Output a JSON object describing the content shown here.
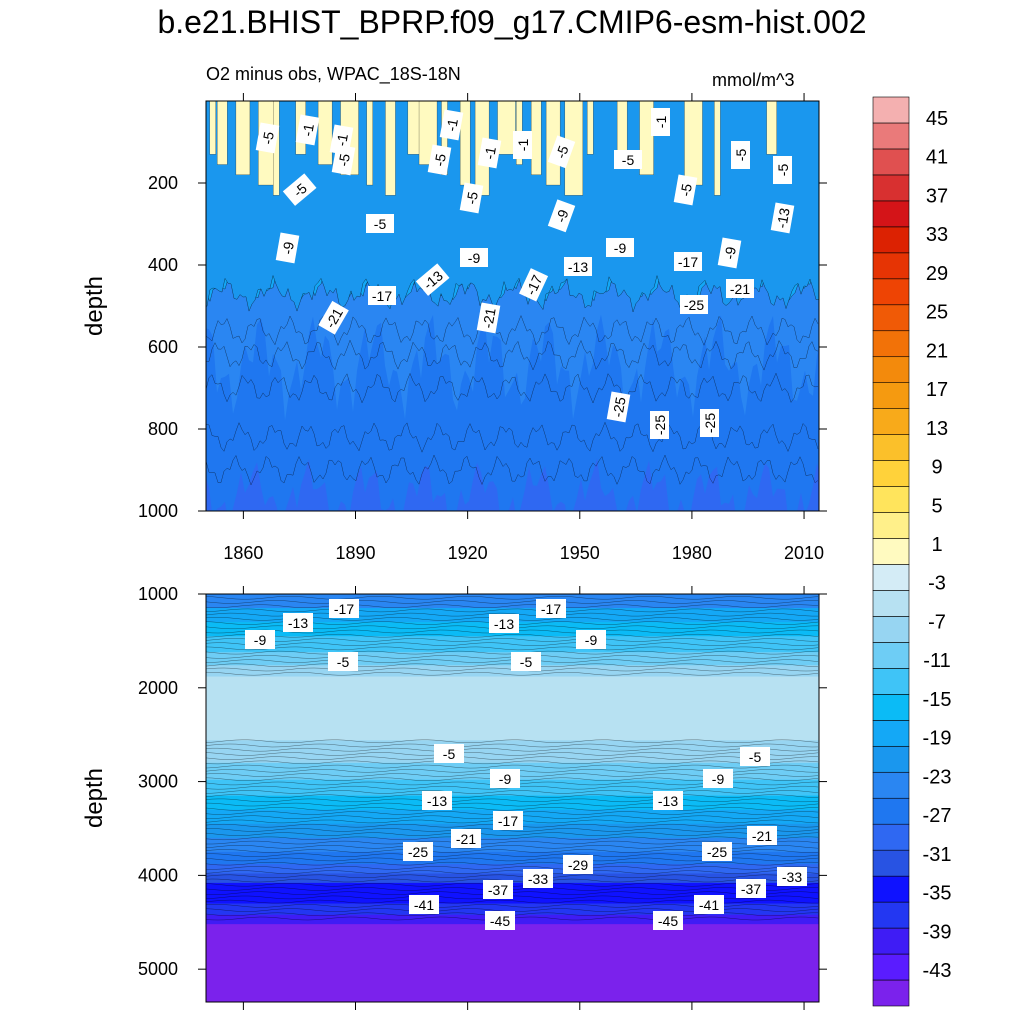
{
  "title": "b.e21.BHIST_BPRP.f09_g17.CMIP6-esm-hist.002",
  "subtitle_left": "O2 minus obs, WPAC_18S-18N",
  "subtitle_right": "mmol/m^3",
  "colors": {
    "levels_bottom_to_top": [
      "#7b22ec",
      "#5a1cff",
      "#3f1cf5",
      "#2337f2",
      "#0f12ff",
      "#2853e3",
      "#2f68f2",
      "#1f77f0",
      "#2a86f2",
      "#1a97ee",
      "#14a8f6",
      "#0bbbf6",
      "#3fc4f7",
      "#6ecdf5",
      "#97d5f2",
      "#b7e1f2",
      "#d4ecf6",
      "#fffac0",
      "#fff08a",
      "#ffe45c",
      "#ffd23a",
      "#fbc02a",
      "#f8aa1a",
      "#f59a10",
      "#f38a0c",
      "#f27208",
      "#f05a06",
      "#ee4404",
      "#e63404",
      "#dc2202",
      "#d41418",
      "#d83030",
      "#e05050",
      "#ea7a7a",
      "#f4b0b0"
    ],
    "labelbar_labels": [
      "45",
      "41",
      "37",
      "33",
      "29",
      "25",
      "21",
      "17",
      "13",
      "9",
      "5",
      "1",
      "-3",
      "-7",
      "-11",
      "-15",
      "-19",
      "-23",
      "-27",
      "-31",
      "-35",
      "-39",
      "-43"
    ]
  },
  "chart_data": [
    {
      "type": "contour",
      "panel": "upper",
      "xlabel": "",
      "ylabel": "depth",
      "x_ticks": [
        1860,
        1890,
        1920,
        1950,
        1980,
        2010
      ],
      "y_ticks": [
        200,
        400,
        600,
        800,
        1000
      ],
      "xlim": [
        1850,
        2014
      ],
      "ylim": [
        1000,
        0
      ],
      "contour_labels": [
        "-5",
        "-1",
        "-1",
        "-1",
        "-1",
        "-1",
        "-1",
        "-5",
        "-5",
        "-5",
        "-5",
        "-5",
        "-5",
        "-5",
        "-5",
        "-5",
        "-5",
        "-9",
        "-9",
        "-9",
        "-9",
        "-9",
        "-13",
        "-13",
        "-13",
        "-17",
        "-17",
        "-17",
        "-21",
        "-21",
        "-21",
        "-25",
        "-25",
        "-25",
        "-25"
      ]
    },
    {
      "type": "contour",
      "panel": "lower",
      "xlabel": "",
      "ylabel": "depth",
      "y_ticks": [
        1000,
        2000,
        3000,
        4000,
        5000
      ],
      "ylim": [
        5350,
        1000
      ],
      "contour_labels": [
        "-17",
        "-17",
        "-13",
        "-13",
        "-9",
        "-9",
        "-5",
        "-5",
        "-5",
        "-5",
        "-9",
        "-9",
        "-13",
        "-13",
        "-17",
        "-21",
        "-21",
        "-25",
        "-25",
        "-29",
        "-33",
        "-33",
        "-37",
        "-37",
        "-41",
        "-41",
        "-45",
        "-45"
      ]
    }
  ]
}
